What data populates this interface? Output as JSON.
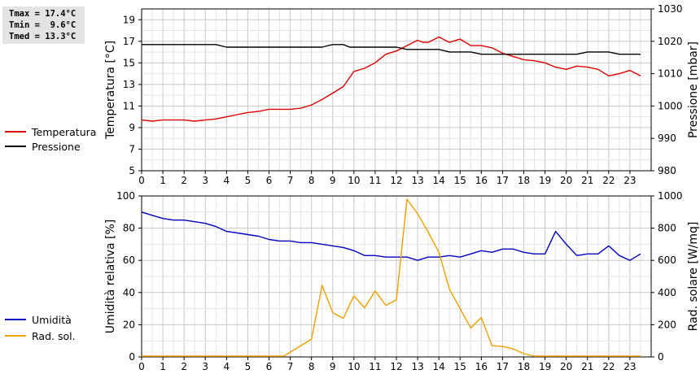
{
  "stats": {
    "tmax": "Tmax = 17.4°C",
    "tmin": "Tmin =  9.6°C",
    "tmed": "Tmed = 13.3°C"
  },
  "legend_top": [
    {
      "label": "Temperatura",
      "color": "#e00000"
    },
    {
      "label": "Pressione",
      "color": "#000000"
    }
  ],
  "legend_bottom": [
    {
      "label": "Umidità",
      "color": "#0000c0"
    },
    {
      "label": "Rad. sol.",
      "color": "#f0a000"
    }
  ],
  "chart_data": [
    {
      "type": "line",
      "xlim": [
        0,
        24
      ],
      "x_ticks": [
        0,
        1,
        2,
        3,
        4,
        5,
        6,
        7,
        8,
        9,
        10,
        11,
        12,
        13,
        14,
        15,
        16,
        17,
        18,
        19,
        20,
        21,
        22,
        23
      ],
      "grid": true,
      "ylabel": "Temperatura [°C]",
      "ylim": [
        5,
        20
      ],
      "y_ticks": [
        5,
        7,
        9,
        11,
        13,
        15,
        17,
        19
      ],
      "y2label": "Pressione [mbar]",
      "y2lim": [
        980,
        1030
      ],
      "y2_ticks": [
        980,
        990,
        1000,
        1010,
        1020,
        1030
      ],
      "series": [
        {
          "name": "Temperatura",
          "axis": "left",
          "color": "#e00000",
          "x": [
            0,
            0.5,
            1,
            1.5,
            2,
            2.5,
            3,
            3.5,
            4,
            4.5,
            5,
            5.5,
            6,
            6.5,
            7,
            7.5,
            8,
            8.5,
            9,
            9.5,
            10,
            10.5,
            11,
            11.5,
            12,
            12.5,
            13,
            13.25,
            13.5,
            14,
            14.5,
            15,
            15.5,
            16,
            16.5,
            17,
            17.5,
            18,
            18.5,
            19,
            19.5,
            20,
            20.5,
            21,
            21.5,
            22,
            22.5,
            23,
            23.5
          ],
          "y": [
            9.7,
            9.6,
            9.7,
            9.7,
            9.7,
            9.6,
            9.7,
            9.8,
            10.0,
            10.2,
            10.4,
            10.5,
            10.7,
            10.7,
            10.7,
            10.8,
            11.1,
            11.6,
            12.2,
            12.8,
            14.2,
            14.5,
            15.0,
            15.8,
            16.1,
            16.6,
            17.1,
            16.9,
            16.9,
            17.4,
            16.9,
            17.2,
            16.6,
            16.6,
            16.4,
            15.9,
            15.6,
            15.3,
            15.2,
            15.0,
            14.6,
            14.4,
            14.7,
            14.6,
            14.4,
            13.8,
            14.0,
            14.3,
            13.8
          ]
        },
        {
          "name": "Pressione",
          "axis": "right",
          "color": "#000000",
          "x": [
            0,
            1,
            2,
            3,
            3.5,
            4,
            5,
            6,
            7,
            8,
            8.5,
            8.8,
            9,
            9.5,
            9.8,
            10,
            11,
            12,
            12.5,
            13,
            14,
            14.5,
            15,
            15.5,
            16,
            17,
            18,
            19,
            20,
            20.5,
            21,
            22,
            22.5,
            23,
            23.5
          ],
          "y": [
            1019.0,
            1019.0,
            1019.0,
            1019.0,
            1019.0,
            1018.2,
            1018.2,
            1018.2,
            1018.2,
            1018.2,
            1018.2,
            1018.7,
            1019.0,
            1019.0,
            1018.2,
            1018.2,
            1018.2,
            1018.2,
            1017.5,
            1017.5,
            1017.5,
            1016.7,
            1016.7,
            1016.7,
            1016.0,
            1016.0,
            1016.0,
            1016.0,
            1016.0,
            1016.0,
            1016.7,
            1016.7,
            1016.0,
            1016.0,
            1016.0
          ]
        }
      ]
    },
    {
      "type": "line",
      "xlim": [
        0,
        24
      ],
      "x_ticks": [
        0,
        1,
        2,
        3,
        4,
        5,
        6,
        7,
        8,
        9,
        10,
        11,
        12,
        13,
        14,
        15,
        16,
        17,
        18,
        19,
        20,
        21,
        22,
        23
      ],
      "grid": true,
      "ylabel": "Umidità relativa [%]",
      "ylim": [
        0,
        100
      ],
      "y_ticks": [
        0,
        20,
        40,
        60,
        80,
        100
      ],
      "y2label": "Rad. solare [W/mq]",
      "y2lim": [
        0,
        1000
      ],
      "y2_ticks": [
        0,
        200,
        400,
        600,
        800,
        1000
      ],
      "series": [
        {
          "name": "Umidità",
          "axis": "left",
          "color": "#0000c0",
          "x": [
            0,
            0.5,
            1,
            1.5,
            2,
            2.5,
            3,
            3.5,
            4,
            4.5,
            5,
            5.5,
            6,
            6.5,
            7,
            7.5,
            8,
            8.5,
            9,
            9.5,
            10,
            10.5,
            11,
            11.5,
            12,
            12.5,
            13,
            13.5,
            14,
            14.5,
            15,
            15.5,
            16,
            16.5,
            17,
            17.5,
            18,
            18.5,
            19,
            19.5,
            20,
            20.5,
            21,
            21.5,
            22,
            22.5,
            23,
            23.5
          ],
          "y": [
            90,
            88,
            86,
            85,
            85,
            84,
            83,
            81,
            78,
            77,
            76,
            75,
            73,
            72,
            72,
            71,
            71,
            70,
            69,
            68,
            66,
            63,
            63,
            62,
            62,
            62,
            60,
            62,
            62,
            63,
            62,
            64,
            66,
            65,
            67,
            67,
            65,
            64,
            64,
            78,
            70,
            63,
            64,
            64,
            69,
            63,
            60,
            64
          ]
        },
        {
          "name": "Rad. sol.",
          "axis": "right",
          "color": "#f0a000",
          "x": [
            0,
            1,
            2,
            3,
            4,
            5,
            6,
            6.7,
            7,
            7.5,
            8,
            8.5,
            9,
            9.5,
            10,
            10.5,
            11,
            11.5,
            12,
            12.5,
            13,
            13.5,
            14,
            14.5,
            15,
            15.5,
            16,
            16.5,
            17,
            17.5,
            18,
            18.5,
            19,
            20,
            21,
            22,
            23,
            23.5
          ],
          "y": [
            5,
            5,
            5,
            5,
            5,
            5,
            5,
            5,
            30,
            70,
            110,
            445,
            275,
            240,
            380,
            305,
            410,
            320,
            355,
            980,
            890,
            775,
            650,
            420,
            300,
            180,
            245,
            70,
            65,
            50,
            20,
            5,
            5,
            5,
            5,
            5,
            5,
            5
          ]
        }
      ]
    }
  ]
}
